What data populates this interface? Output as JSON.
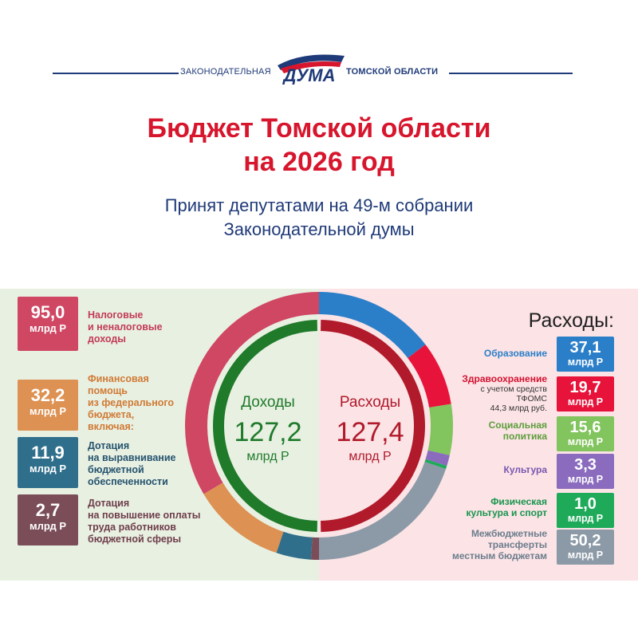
{
  "header": {
    "org_left": "ЗАКОНОДАТЕЛЬНАЯ",
    "logo_text": "ДУМА",
    "org_right": "ТОМСКОЙ ОБЛАСТИ"
  },
  "title_line1": "Бюджет Томской области",
  "title_line2": "на 2026 год",
  "subtitle_line1": "Принят депутатами на 49-м собрании",
  "subtitle_line2": "Законодательной думы",
  "colors": {
    "title": "#d7162d",
    "navy": "#1f3a78",
    "income_ring": "#1f7a2a",
    "expense_ring": "#b01a2a"
  },
  "chart_data": [
    {
      "type": "pie",
      "center_label": "Доходы",
      "center_value": "127,2",
      "center_unit": "млрд Р",
      "items": [
        {
          "value": 95.0,
          "value_text": "95,0",
          "unit": "млрд Р",
          "label_lines": [
            "Налоговые",
            "и неналоговые",
            "доходы"
          ],
          "color": "#cf4763",
          "text_color": "#c23b56"
        },
        {
          "value": 32.2,
          "value_text": "32,2",
          "unit": "млрд Р",
          "label_lines": [
            "Финансовая",
            "помощь",
            "из федерального",
            "бюджета,",
            "включая:"
          ],
          "color": "#dd9152",
          "text_color": "#d07a35"
        },
        {
          "value": 11.9,
          "value_text": "11,9",
          "unit": "млрд Р",
          "label_lines": [
            "Дотация",
            "на выравнивание",
            "бюджетной",
            "обеспеченности"
          ],
          "color": "#2f6f8c",
          "text_color": "#25536e"
        },
        {
          "value": 2.7,
          "value_text": "2,7",
          "unit": "млрд Р",
          "label_lines": [
            "Дотация",
            "на повышение оплаты",
            "труда работников",
            "бюджетной сферы"
          ],
          "color": "#7a4d58",
          "text_color": "#6e3d4a"
        }
      ]
    },
    {
      "type": "pie",
      "title": "Расходы:",
      "center_label": "Расходы",
      "center_value": "127,4",
      "center_unit": "млрд Р",
      "items": [
        {
          "value": 37.1,
          "value_text": "37,1",
          "unit": "млрд Р",
          "label_lines": [
            "Образование"
          ],
          "color": "#2b7fc9",
          "text_color": "#2b7fc9"
        },
        {
          "value": 19.7,
          "value_text": "19,7",
          "unit": "млрд Р",
          "label_lines": [
            "Здравоохранение"
          ],
          "note_lines": [
            "с учетом средств",
            "ТФОМС",
            "44,3 млрд руб."
          ],
          "color": "#e8133a",
          "text_color": "#d3122f"
        },
        {
          "value": 15.6,
          "value_text": "15,6",
          "unit": "млрд Р",
          "label_lines": [
            "Социальная",
            "политика"
          ],
          "color": "#82c45e",
          "text_color": "#5d9e3b"
        },
        {
          "value": 3.3,
          "value_text": "3,3",
          "unit": "млрд Р",
          "label_lines": [
            "Культура"
          ],
          "color": "#8a6bbd",
          "text_color": "#7a57b0"
        },
        {
          "value": 1.0,
          "value_text": "1,0",
          "unit": "млрд Р",
          "label_lines": [
            "Физическая",
            "культура и спорт"
          ],
          "color": "#1faa5a",
          "text_color": "#18954d"
        },
        {
          "value": 50.2,
          "value_text": "50,2",
          "unit": "млрд Р",
          "label_lines": [
            "Межбюджетные",
            "трансферты",
            "местным бюджетам"
          ],
          "color": "#8b9aa6",
          "text_color": "#6b7d8c"
        }
      ]
    }
  ]
}
